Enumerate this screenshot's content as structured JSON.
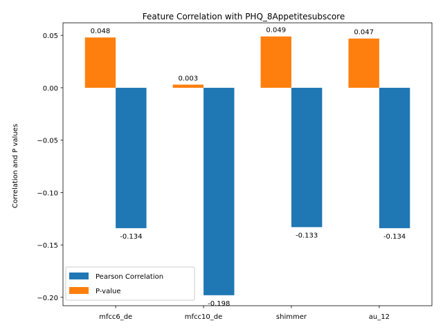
{
  "chart_data": {
    "type": "bar",
    "title": "Feature Correlation with PHQ_8Appetitesubscore",
    "xlabel": "",
    "ylabel": "Correlation and P values",
    "categories": [
      "mfcc6_de",
      "mfcc10_de",
      "shimmer",
      "au_12"
    ],
    "series": [
      {
        "name": "Pearson Correlation",
        "color": "#1f77b4",
        "values": [
          -0.134,
          -0.198,
          -0.133,
          -0.134
        ],
        "labels": [
          "-0.134",
          "-0.198",
          "-0.133",
          "-0.134"
        ]
      },
      {
        "name": "P-value",
        "color": "#ff7f0e",
        "values": [
          0.048,
          0.003,
          0.049,
          0.047
        ],
        "labels": [
          "0.048",
          "0.003",
          "0.049",
          "0.047"
        ]
      }
    ],
    "ylim": [
      -0.208,
      0.062
    ],
    "yticks": [
      0.05,
      0.0,
      -0.05,
      -0.1,
      -0.15,
      -0.2
    ],
    "ytick_labels": [
      "0.05",
      "0.00",
      "−0.05",
      "−0.10",
      "−0.15",
      "−0.20"
    ],
    "legend_position": "lower-left",
    "grid": false
  }
}
